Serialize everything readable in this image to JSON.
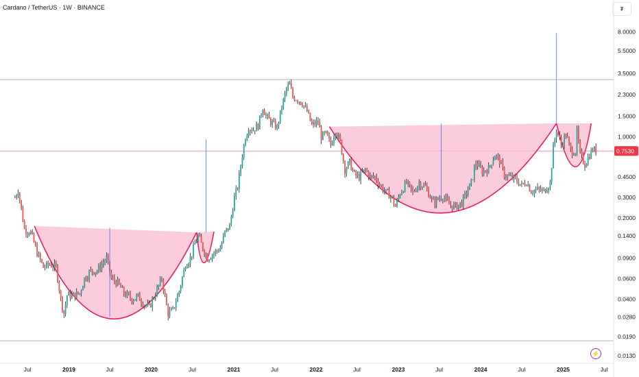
{
  "header": {
    "title": "Cardano / TetherUS · 1W · BINANCE",
    "unit_button": "₮"
  },
  "colors": {
    "up": "#26a69a",
    "down": "#ef5350",
    "wick": "#131722",
    "cup_fill": "#f8bbd0",
    "cup_line": "#e91e63",
    "price_line": "#f48fb1",
    "hline": "#b2b5be",
    "vline": "#2962ff",
    "tag_bg": "#f23645"
  },
  "chart_data": {
    "type": "candlestick",
    "symbol": "Cardano / TetherUS",
    "interval": "1W",
    "exchange": "BINANCE",
    "y_scale": "log",
    "ylim": [
      0.013,
      9.2
    ],
    "y_ticks": [
      "8.0000",
      "5.5000",
      "3.5000",
      "2.3000",
      "1.5000",
      "1.0000",
      "0.7530",
      "0.4500",
      "0.3000",
      "0.2000",
      "0.1400",
      "0.0900",
      "0.0600",
      "0.0400",
      "0.0280",
      "0.0190",
      "0.0130"
    ],
    "x_ticks": [
      "Jul",
      "2019",
      "Jul",
      "2020",
      "Jul",
      "2021",
      "Jul",
      "2022",
      "Jul",
      "2023",
      "Jul",
      "2024",
      "Jul",
      "2025",
      "Jul"
    ],
    "x_tick_dates": [
      "2018-07-01",
      "2019-01-01",
      "2019-07-01",
      "2020-01-01",
      "2020-07-01",
      "2021-01-01",
      "2021-07-01",
      "2022-01-01",
      "2022-07-01",
      "2023-01-01",
      "2023-07-01",
      "2024-01-01",
      "2024-07-01",
      "2025-01-01",
      "2025-07-01"
    ],
    "current_price": "0.7530",
    "horizontal_lines": [
      3.1,
      0.0175,
      0.753
    ],
    "vertical_lines": [
      {
        "date": "2019-07-01",
        "from": 0.028,
        "to": 0.165
      },
      {
        "date": "2020-08-31",
        "from": 0.15,
        "to": 0.95
      },
      {
        "date": "2023-07-10",
        "from": 0.28,
        "to": 1.3
      },
      {
        "date": "2024-12-02",
        "from": 1.3,
        "to": 7.8
      }
    ],
    "cups": [
      {
        "start": [
          "2018-08-01",
          0.17
        ],
        "bottom": [
          "2019-07-01",
          0.027
        ],
        "end": [
          "2020-07-20",
          0.15
        ]
      },
      {
        "start": [
          "2020-07-20",
          0.15
        ],
        "bottom": [
          "2020-08-17",
          0.082
        ],
        "end": [
          "2020-10-05",
          0.152
        ]
      },
      {
        "start": [
          "2022-03-01",
          1.22
        ],
        "bottom": [
          "2023-07-01",
          0.22
        ],
        "end": [
          "2024-12-02",
          1.3
        ]
      },
      {
        "start": [
          "2024-12-02",
          1.3
        ],
        "bottom": [
          "2025-03-03",
          0.55
        ],
        "end": [
          "2025-05-05",
          1.3
        ]
      }
    ],
    "price_path": [
      [
        "2018-05-07",
        0.3
      ],
      [
        "2018-05-21",
        0.35
      ],
      [
        "2018-06-18",
        0.16
      ],
      [
        "2018-07-16",
        0.15
      ],
      [
        "2018-08-13",
        0.1
      ],
      [
        "2018-09-10",
        0.075
      ],
      [
        "2018-10-08",
        0.08
      ],
      [
        "2018-11-05",
        0.075
      ],
      [
        "2018-11-26",
        0.04
      ],
      [
        "2018-12-10",
        0.03
      ],
      [
        "2018-12-24",
        0.043
      ],
      [
        "2019-01-21",
        0.043
      ],
      [
        "2019-02-18",
        0.045
      ],
      [
        "2019-03-11",
        0.06
      ],
      [
        "2019-04-08",
        0.07
      ],
      [
        "2019-05-06",
        0.07
      ],
      [
        "2019-05-27",
        0.08
      ],
      [
        "2019-06-17",
        0.09
      ],
      [
        "2019-07-08",
        0.06
      ],
      [
        "2019-08-05",
        0.055
      ],
      [
        "2019-09-02",
        0.045
      ],
      [
        "2019-10-07",
        0.04
      ],
      [
        "2019-11-04",
        0.042
      ],
      [
        "2019-12-02",
        0.036
      ],
      [
        "2019-12-23",
        0.034
      ],
      [
        "2020-01-20",
        0.045
      ],
      [
        "2020-02-17",
        0.06
      ],
      [
        "2020-03-09",
        0.035
      ],
      [
        "2020-03-16",
        0.03
      ],
      [
        "2020-04-06",
        0.032
      ],
      [
        "2020-05-04",
        0.047
      ],
      [
        "2020-06-01",
        0.08
      ],
      [
        "2020-06-22",
        0.09
      ],
      [
        "2020-07-13",
        0.12
      ],
      [
        "2020-07-27",
        0.14
      ],
      [
        "2020-08-17",
        0.11
      ],
      [
        "2020-09-07",
        0.09
      ],
      [
        "2020-10-05",
        0.1
      ],
      [
        "2020-11-02",
        0.11
      ],
      [
        "2020-11-23",
        0.15
      ],
      [
        "2020-12-14",
        0.17
      ],
      [
        "2021-01-04",
        0.3
      ],
      [
        "2021-01-18",
        0.37
      ],
      [
        "2021-02-08",
        0.7
      ],
      [
        "2021-02-22",
        1.0
      ],
      [
        "2021-03-08",
        1.2
      ],
      [
        "2021-03-29",
        1.15
      ],
      [
        "2021-04-19",
        1.25
      ],
      [
        "2021-05-10",
        1.8
      ],
      [
        "2021-05-24",
        1.5
      ],
      [
        "2021-06-21",
        1.3
      ],
      [
        "2021-07-12",
        1.2
      ],
      [
        "2021-08-02",
        1.8
      ],
      [
        "2021-08-23",
        2.6
      ],
      [
        "2021-09-06",
        2.8
      ],
      [
        "2021-09-20",
        2.2
      ],
      [
        "2021-10-11",
        2.1
      ],
      [
        "2021-11-01",
        1.95
      ],
      [
        "2021-11-22",
        1.65
      ],
      [
        "2021-12-13",
        1.25
      ],
      [
        "2022-01-10",
        1.35
      ],
      [
        "2022-01-24",
        1.0
      ],
      [
        "2022-02-14",
        1.05
      ],
      [
        "2022-03-07",
        0.85
      ],
      [
        "2022-03-28",
        1.15
      ],
      [
        "2022-04-18",
        0.9
      ],
      [
        "2022-05-09",
        0.52
      ],
      [
        "2022-05-30",
        0.6
      ],
      [
        "2022-06-20",
        0.47
      ],
      [
        "2022-07-11",
        0.45
      ],
      [
        "2022-08-08",
        0.52
      ],
      [
        "2022-08-29",
        0.45
      ],
      [
        "2022-09-19",
        0.45
      ],
      [
        "2022-10-17",
        0.37
      ],
      [
        "2022-11-07",
        0.33
      ],
      [
        "2022-11-28",
        0.31
      ],
      [
        "2022-12-19",
        0.25
      ],
      [
        "2023-01-09",
        0.33
      ],
      [
        "2023-02-06",
        0.4
      ],
      [
        "2023-03-06",
        0.33
      ],
      [
        "2023-04-03",
        0.4
      ],
      [
        "2023-05-01",
        0.37
      ],
      [
        "2023-06-05",
        0.27
      ],
      [
        "2023-06-26",
        0.29
      ],
      [
        "2023-07-17",
        0.31
      ],
      [
        "2023-08-14",
        0.26
      ],
      [
        "2023-09-11",
        0.25
      ],
      [
        "2023-10-09",
        0.27
      ],
      [
        "2023-10-30",
        0.33
      ],
      [
        "2023-11-20",
        0.4
      ],
      [
        "2023-12-11",
        0.6
      ],
      [
        "2024-01-08",
        0.5
      ],
      [
        "2024-02-05",
        0.53
      ],
      [
        "2024-03-04",
        0.7
      ],
      [
        "2024-03-25",
        0.62
      ],
      [
        "2024-04-15",
        0.47
      ],
      [
        "2024-05-06",
        0.45
      ],
      [
        "2024-06-03",
        0.43
      ],
      [
        "2024-07-01",
        0.38
      ],
      [
        "2024-07-22",
        0.41
      ],
      [
        "2024-08-12",
        0.34
      ],
      [
        "2024-09-09",
        0.35
      ],
      [
        "2024-10-07",
        0.34
      ],
      [
        "2024-11-04",
        0.4
      ],
      [
        "2024-11-18",
        0.8
      ],
      [
        "2024-12-02",
        1.15
      ],
      [
        "2024-12-23",
        0.85
      ],
      [
        "2025-01-13",
        1.05
      ],
      [
        "2025-02-03",
        0.75
      ],
      [
        "2025-02-24",
        0.75
      ],
      [
        "2025-03-03",
        1.1
      ],
      [
        "2025-03-17",
        0.7
      ],
      [
        "2025-04-07",
        0.58
      ],
      [
        "2025-04-28",
        0.7
      ],
      [
        "2025-05-12",
        0.78
      ],
      [
        "2025-05-26",
        0.753
      ]
    ]
  }
}
